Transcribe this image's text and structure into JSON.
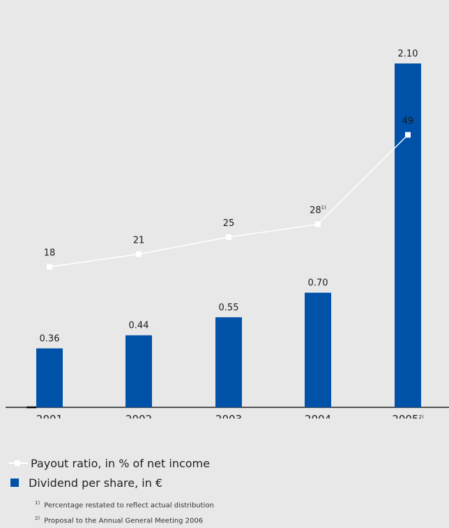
{
  "chart_data": {
    "type": "bar",
    "categories": [
      "2001",
      "2002",
      "2003",
      "2004",
      "2005"
    ],
    "category_superscripts": [
      "",
      "",
      "",
      "",
      "2)"
    ],
    "series": [
      {
        "name": "Dividend per share, in €",
        "kind": "bar",
        "values": [
          0.36,
          0.44,
          0.55,
          0.7,
          2.1
        ],
        "labels": [
          "0.36",
          "0.44",
          "0.55",
          "0.70",
          "2.10"
        ]
      },
      {
        "name": "Payout ratio, in % of net income",
        "kind": "line",
        "values": [
          18,
          21,
          25,
          28,
          49
        ],
        "labels": [
          "18",
          "21",
          "25",
          "28",
          "49"
        ],
        "label_superscripts": [
          "",
          "",
          "",
          "1)",
          ""
        ]
      }
    ],
    "bar_color": "#0051a8",
    "line_color": "#ffffff",
    "background": "#e8e8e8"
  },
  "legend": {
    "line_label": "Payout ratio, in % of net income",
    "bar_label": "Dividend per share, in €"
  },
  "footnotes": [
    {
      "mark": "1)",
      "text": "Percentage restated to reflect actual distribution"
    },
    {
      "mark": "2)",
      "text": "Proposal to the Annual General Meeting 2006"
    }
  ]
}
